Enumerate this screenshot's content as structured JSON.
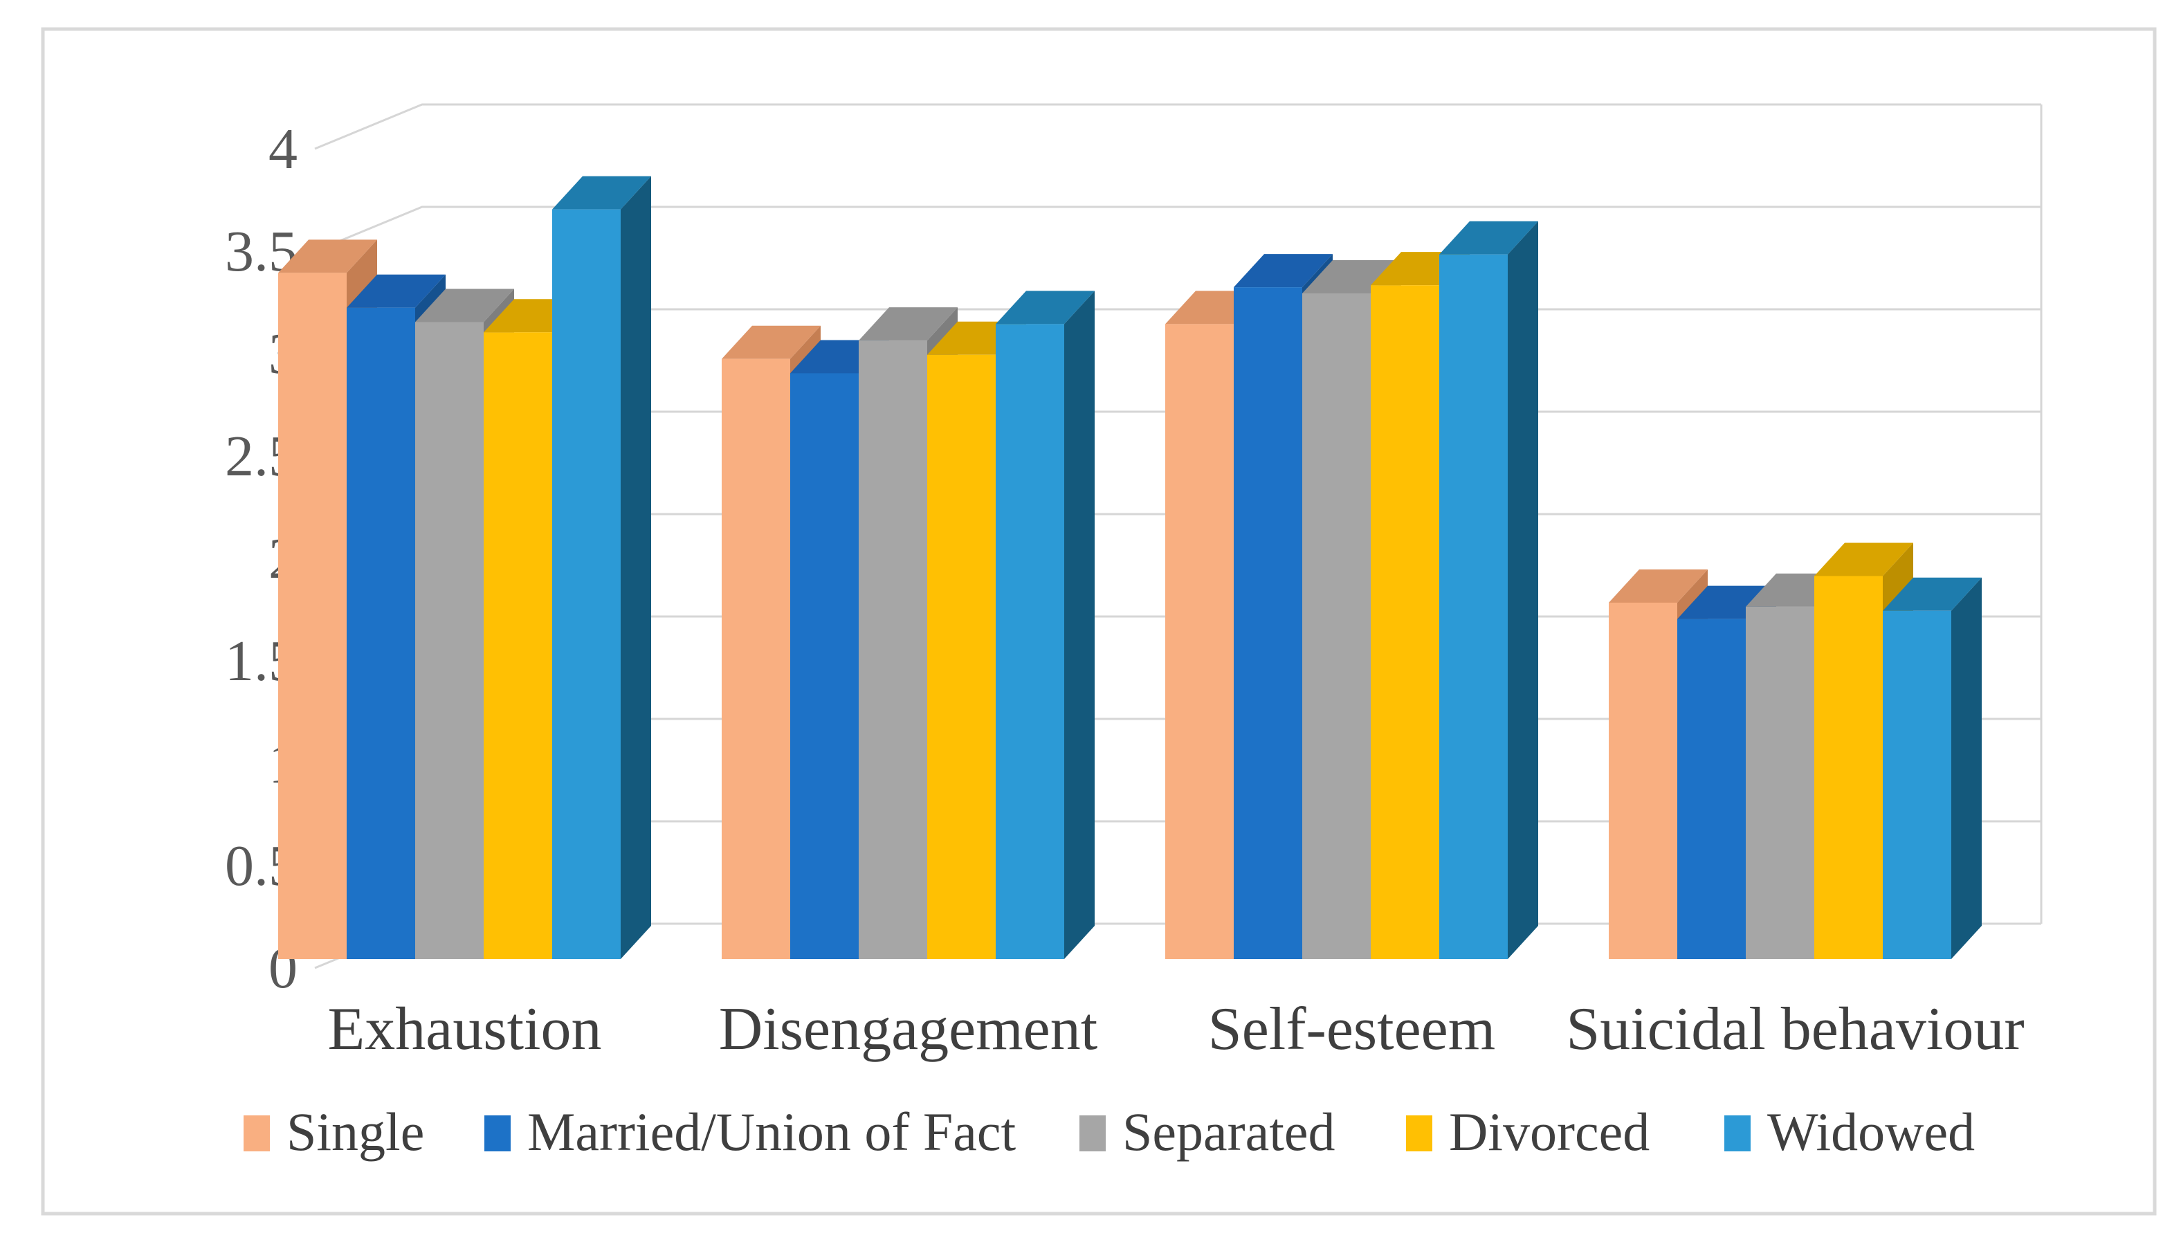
{
  "figure": {
    "background": "#ffffff",
    "frame_color": "#d9d9d9"
  },
  "chart_data": {
    "type": "bar",
    "style": "3d-clustered-column",
    "title": "",
    "xlabel": "",
    "ylabel": "",
    "categories": [
      "Exhaustion",
      "Disengagement",
      "Self-esteem",
      "Suicidal behaviour"
    ],
    "series": [
      {
        "name": "Single",
        "color": "#F9AF81",
        "color_top": "#DE9568",
        "color_side": "#C57E52",
        "values": [
          3.35,
          2.93,
          3.1,
          1.74
        ]
      },
      {
        "name": "Married/Union of Fact",
        "color": "#1D72C7",
        "color_top": "#1A5FAE",
        "color_side": "#15518F",
        "values": [
          3.18,
          2.86,
          3.28,
          1.66
        ]
      },
      {
        "name": "Separated",
        "color": "#A6A6A6",
        "color_top": "#929292",
        "color_side": "#7E7E7E",
        "values": [
          3.11,
          3.02,
          3.25,
          1.72
        ]
      },
      {
        "name": "Divorced",
        "color": "#FFC003",
        "color_top": "#D9A400",
        "color_side": "#BD8F00",
        "values": [
          3.06,
          2.95,
          3.29,
          1.87
        ]
      },
      {
        "name": "Widowed",
        "color": "#2C9AD6",
        "color_top": "#1E7CAD",
        "color_side": "#14597C",
        "values": [
          3.66,
          3.1,
          3.44,
          1.7
        ]
      }
    ],
    "ylim": [
      0,
      4
    ],
    "ytick_step": 0.5,
    "yticks": [
      "4",
      "3.5",
      "3",
      "2.5",
      "2",
      "1.5",
      "1",
      "0.5",
      "0"
    ],
    "grid": true,
    "gridline_color": "#D6D6D6",
    "axis_text_color": "#595959",
    "label_text_color": "#3F3F3F",
    "legend_position": "bottom"
  }
}
